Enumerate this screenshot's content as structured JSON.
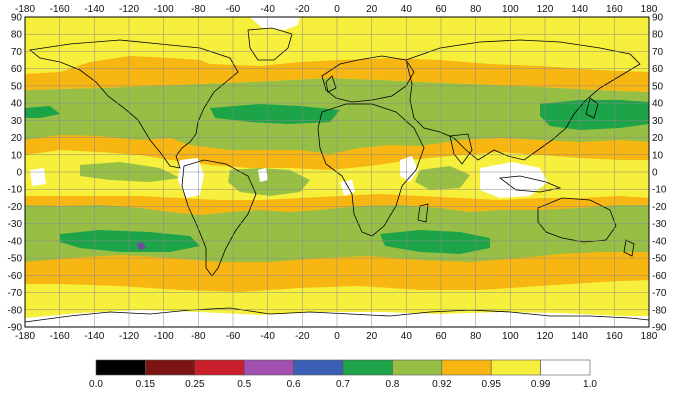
{
  "map": {
    "lon_ticks": [
      "-180",
      "-160",
      "-140",
      "-120",
      "-100",
      "-80",
      "-60",
      "-40",
      "-20",
      "0",
      "20",
      "40",
      "60",
      "80",
      "100",
      "120",
      "140",
      "160",
      "180"
    ],
    "lat_ticks": [
      "90",
      "80",
      "70",
      "60",
      "50",
      "40",
      "30",
      "20",
      "10",
      "0",
      "-10",
      "-20",
      "-30",
      "-40",
      "-50",
      "-60",
      "-70",
      "-80",
      "-90"
    ],
    "zone_colors": {
      "white": "#ffffff",
      "yellow": "#f6ef3c",
      "orange": "#f8b613",
      "olive": "#97bf46",
      "green": "#1da449",
      "purple": "#6f4aa2"
    }
  },
  "legend": {
    "breaks": [
      "0.0",
      "0.15",
      "0.25",
      "0.5",
      "0.6",
      "0.7",
      "0.8",
      "0.92",
      "0.95",
      "0.99",
      "1.0"
    ],
    "colors": [
      "#000000",
      "#7d1414",
      "#c81f2a",
      "#a250b0",
      "#3a5fb5",
      "#1da449",
      "#97bf46",
      "#f8b613",
      "#f6ef3c",
      "#ffffff"
    ]
  }
}
